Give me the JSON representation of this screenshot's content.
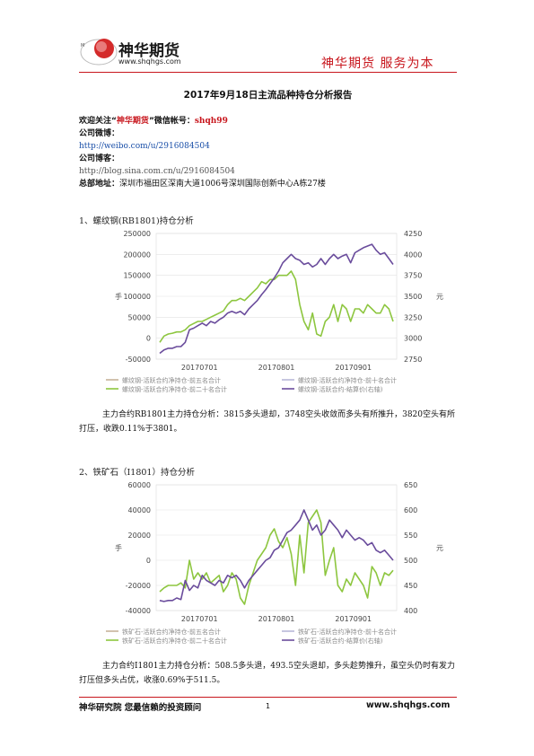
{
  "header": {
    "brand": "神华期货",
    "url": "www.shqhgs.com",
    "slogan": "神华期货  服务为本"
  },
  "title": "2017年9月18日主流品种持仓分析报告",
  "info": {
    "follow_prefix": "欢迎关注“",
    "follow_brand": "神华期货",
    "follow_suffix": "”微信帐号：",
    "wechat": "shqh99",
    "weibo_label": "公司微博：",
    "weibo_url": "http://weibo.com/u/2916084504",
    "blog_label": "公司博客：",
    "blog_url": "http://blog.sina.com.cn/u/2916084504",
    "address_label": "总部地址：",
    "address": "深圳市福田区深南大道1006号深圳国际创新中心A栋27楼"
  },
  "sections": [
    {
      "heading": "1、螺纹钢(RB1801)持仓分析",
      "paragraph": "主力合约RB1801主力持仓分析：3815多头退却，3748空头收敛而多头有所推升，3820空头有所打压，收跌0.11%于3801。"
    },
    {
      "heading": "2、铁矿石（I1801）持仓分析",
      "paragraph": "主力合约I1801主力持仓分析：508.5多头退，493.5空头退却，多头趁势推升，虽空头仍时有发力打压但多头占优，收涨0.69%于511.5。"
    }
  ],
  "chart_data": [
    {
      "type": "line",
      "y_left_ticks": [
        "250000",
        "200000",
        "150000",
        "100000",
        "50000",
        "0",
        "-50000"
      ],
      "y_right_ticks": [
        "4250",
        "4000",
        "3750",
        "3500",
        "3250",
        "3000",
        "2750"
      ],
      "ylim_left": [
        -50000,
        250000
      ],
      "ylim_right": [
        2750,
        4250
      ],
      "ylabel_left": "手",
      "ylabel_right": "元",
      "x_ticks": [
        "20170701",
        "20170801",
        "20170901"
      ],
      "legend": [
        "螺纹钢-活跃合约净持仓-前五名合计",
        "螺纹钢-活跃合约净持仓-前十名合计",
        "螺纹钢-活跃合约净持仓-前二十名合计",
        "螺纹钢-活跃合约-结算价(右轴)"
      ],
      "legend_position": "bottom",
      "series": [
        {
          "name": "螺纹钢-活跃合约净持仓-前二十名合计",
          "axis": "left",
          "color": "#8dc63f",
          "values": [
            -10000,
            5000,
            10000,
            12000,
            15000,
            15000,
            20000,
            30000,
            35000,
            40000,
            40000,
            45000,
            50000,
            55000,
            60000,
            65000,
            80000,
            90000,
            90000,
            95000,
            90000,
            100000,
            110000,
            120000,
            135000,
            130000,
            140000,
            140000,
            150000,
            150000,
            150000,
            160000,
            140000,
            80000,
            40000,
            20000,
            60000,
            10000,
            5000,
            40000,
            50000,
            80000,
            40000,
            80000,
            70000,
            40000,
            70000,
            70000,
            60000,
            80000,
            70000,
            60000,
            60000,
            80000,
            70000,
            40000
          ]
        },
        {
          "name": "螺纹钢-活跃合约-结算价(右轴)",
          "axis": "right",
          "color": "#6a4c9c",
          "values": [
            2820,
            2860,
            2880,
            2880,
            2900,
            2900,
            2950,
            3100,
            3120,
            3150,
            3180,
            3150,
            3200,
            3180,
            3220,
            3250,
            3300,
            3320,
            3300,
            3320,
            3280,
            3350,
            3400,
            3450,
            3520,
            3580,
            3650,
            3720,
            3800,
            3900,
            3950,
            4000,
            3950,
            3930,
            3880,
            3900,
            3850,
            3880,
            3950,
            3880,
            3950,
            4000,
            3950,
            3980,
            4000,
            3900,
            4020,
            4050,
            4080,
            4100,
            4120,
            4050,
            4000,
            4020,
            3950,
            3880
          ]
        }
      ]
    },
    {
      "type": "line",
      "y_left_ticks": [
        "60000",
        "40000",
        "20000",
        "0",
        "-20000",
        "-40000"
      ],
      "y_right_ticks": [
        "650",
        "600",
        "550",
        "500",
        "450",
        "400"
      ],
      "ylim_left": [
        -40000,
        60000
      ],
      "ylim_right": [
        400,
        650
      ],
      "ylabel_left": "手",
      "ylabel_right": "元",
      "x_ticks": [
        "20170701",
        "20170801",
        "20170901"
      ],
      "legend": [
        "铁矿石-活跃合约净持仓-前五名合计",
        "铁矿石-活跃合约净持仓-前十名合计",
        "铁矿石-活跃合约净持仓-前二十名合计",
        "铁矿石-活跃合约-结算价(右轴)"
      ],
      "legend_position": "bottom",
      "series": [
        {
          "name": "铁矿石-活跃合约净持仓-前二十名合计",
          "axis": "left",
          "color": "#8dc63f",
          "values": [
            -25000,
            -22000,
            -20000,
            -20000,
            -20000,
            -18000,
            -22000,
            0,
            -15000,
            -10000,
            -15000,
            -10000,
            -18000,
            -15000,
            -12000,
            -25000,
            -20000,
            -10000,
            -15000,
            -30000,
            -35000,
            -20000,
            -10000,
            0,
            5000,
            10000,
            20000,
            25000,
            15000,
            10000,
            18000,
            5000,
            -20000,
            20000,
            -10000,
            30000,
            35000,
            40000,
            30000,
            -12000,
            0,
            10000,
            -20000,
            -25000,
            -15000,
            -20000,
            -10000,
            -15000,
            -20000,
            -30000,
            -5000,
            -10000,
            -20000,
            -10000,
            -12000,
            -8000
          ]
        },
        {
          "name": "铁矿石-活跃合约-结算价(右轴)",
          "axis": "right",
          "color": "#6a4c9c",
          "values": [
            420,
            418,
            420,
            420,
            425,
            422,
            460,
            440,
            450,
            445,
            470,
            460,
            455,
            450,
            460,
            455,
            470,
            465,
            470,
            460,
            445,
            460,
            470,
            480,
            490,
            500,
            505,
            520,
            525,
            540,
            555,
            560,
            570,
            580,
            600,
            580,
            560,
            570,
            550,
            560,
            580,
            570,
            560,
            545,
            560,
            550,
            540,
            545,
            540,
            530,
            535,
            520,
            515,
            520,
            510,
            500
          ]
        }
      ]
    }
  ],
  "footer": {
    "left": "神华研究院  您最信赖的投资顾问",
    "page": "1",
    "right": "www.shqhgs.com"
  }
}
